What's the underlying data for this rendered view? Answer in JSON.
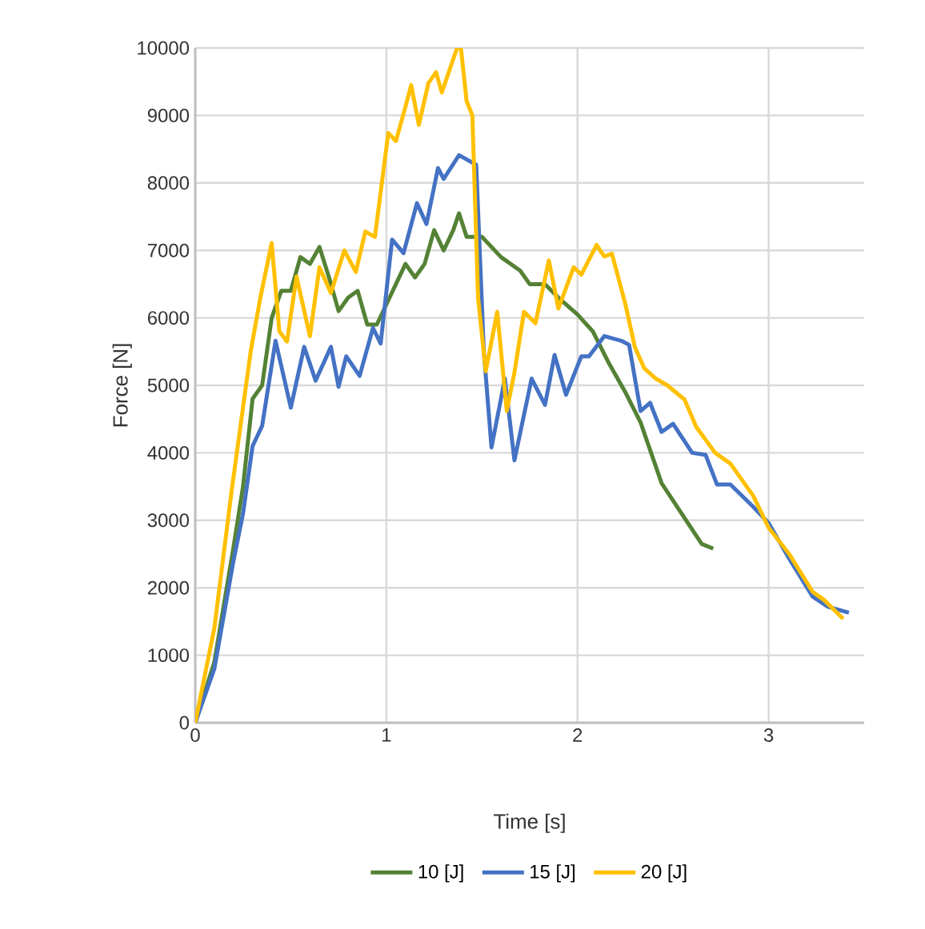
{
  "chart_data": {
    "type": "line",
    "xlabel": "Time [s]",
    "ylabel": "Force [N]",
    "xlim": [
      0,
      3.5
    ],
    "xticks": [
      0,
      1,
      2,
      3
    ],
    "ylim": [
      0,
      10000
    ],
    "yticks": [
      0,
      1000,
      2000,
      3000,
      4000,
      5000,
      6000,
      7000,
      8000,
      9000,
      10000
    ],
    "grid": true,
    "legend": "bottom",
    "marker": "none",
    "line_style": "solid",
    "series": [
      {
        "name": "10 [J]",
        "color": "#548235",
        "x": [
          0,
          0.1,
          0.2,
          0.25,
          0.3,
          0.35,
          0.4,
          0.45,
          0.5,
          0.55,
          0.6,
          0.65,
          0.7,
          0.75,
          0.8,
          0.85,
          0.9,
          0.95,
          1.0,
          1.05,
          1.1,
          1.15,
          1.2,
          1.25,
          1.3,
          1.35,
          1.38,
          1.42,
          1.5,
          1.6,
          1.7,
          1.75,
          1.83,
          1.9,
          2.0,
          2.08,
          2.16,
          2.25,
          2.33,
          2.44,
          2.58,
          2.65,
          2.71
        ],
        "values": [
          0,
          900,
          2600,
          3500,
          4800,
          5000,
          6000,
          6400,
          6400,
          6900,
          6800,
          7050,
          6600,
          6100,
          6300,
          6400,
          5900,
          5900,
          6200,
          6500,
          6800,
          6600,
          6800,
          7300,
          7000,
          7300,
          7550,
          7200,
          7200,
          6900,
          6700,
          6500,
          6500,
          6300,
          6050,
          5800,
          5350,
          4900,
          4450,
          3550,
          2950,
          2650,
          2580
        ]
      },
      {
        "name": "15 [J]",
        "color": "#4472c4",
        "x": [
          0,
          0.1,
          0.2,
          0.25,
          0.3,
          0.35,
          0.42,
          0.5,
          0.57,
          0.63,
          0.71,
          0.75,
          0.79,
          0.86,
          0.93,
          0.97,
          1.03,
          1.09,
          1.16,
          1.21,
          1.27,
          1.3,
          1.38,
          1.47,
          1.51,
          1.55,
          1.62,
          1.67,
          1.76,
          1.83,
          1.88,
          1.94,
          2.02,
          2.06,
          2.14,
          2.23,
          2.27,
          2.33,
          2.38,
          2.44,
          2.5,
          2.6,
          2.67,
          2.73,
          2.8,
          2.92,
          3.0,
          3.11,
          3.23,
          3.31,
          3.42
        ],
        "values": [
          0,
          800,
          2400,
          3100,
          4100,
          4400,
          5660,
          4670,
          5570,
          5070,
          5570,
          4980,
          5430,
          5140,
          5850,
          5620,
          7160,
          6960,
          7700,
          7390,
          8220,
          8060,
          8410,
          8270,
          5500,
          4080,
          5100,
          3890,
          5100,
          4710,
          5450,
          4860,
          5430,
          5430,
          5730,
          5660,
          5600,
          4620,
          4740,
          4310,
          4430,
          4000,
          3970,
          3530,
          3530,
          3200,
          2960,
          2420,
          1870,
          1720,
          1630
        ]
      },
      {
        "name": "20 [J]",
        "color": "#ffc000",
        "x": [
          0,
          0.1,
          0.19,
          0.29,
          0.34,
          0.4,
          0.44,
          0.48,
          0.53,
          0.6,
          0.65,
          0.71,
          0.78,
          0.84,
          0.89,
          0.94,
          1.01,
          1.05,
          1.1,
          1.13,
          1.17,
          1.22,
          1.26,
          1.29,
          1.37,
          1.39,
          1.42,
          1.45,
          1.48,
          1.52,
          1.58,
          1.63,
          1.67,
          1.72,
          1.78,
          1.85,
          1.9,
          1.98,
          2.02,
          2.1,
          2.14,
          2.18,
          2.25,
          2.3,
          2.35,
          2.41,
          2.47,
          2.56,
          2.62,
          2.72,
          2.8,
          2.92,
          3.0,
          3.11,
          3.23,
          3.29,
          3.39
        ],
        "values": [
          0,
          1400,
          3430,
          5500,
          6290,
          7110,
          5800,
          5650,
          6610,
          5730,
          6750,
          6370,
          7000,
          6680,
          7280,
          7200,
          8740,
          8620,
          9130,
          9450,
          8860,
          9480,
          9640,
          9340,
          10000,
          10000,
          9210,
          9000,
          6290,
          5210,
          6090,
          4620,
          5190,
          6090,
          5920,
          6850,
          6140,
          6750,
          6640,
          7080,
          6910,
          6950,
          6210,
          5570,
          5250,
          5100,
          5000,
          4790,
          4390,
          4000,
          3840,
          3360,
          2890,
          2490,
          1940,
          1820,
          1540
        ]
      }
    ]
  }
}
